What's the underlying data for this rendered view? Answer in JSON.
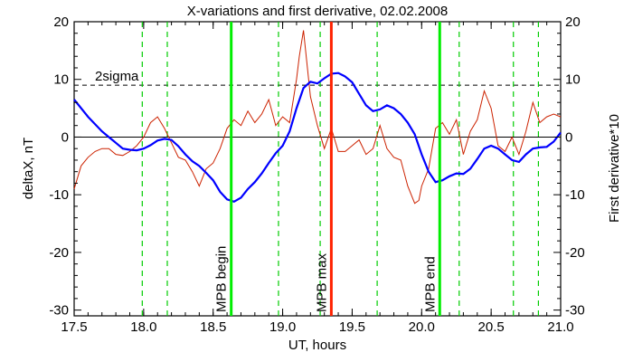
{
  "chart_data": {
    "type": "line",
    "title": "X-variations and first derivative, 02.02.2008",
    "xlabel": "UT, hours",
    "ylabel_left": "deltaX, nT",
    "ylabel_right": "First derivative*10",
    "xlim": [
      17.5,
      21.0
    ],
    "ylim": [
      -31,
      20
    ],
    "xticks": [
      "17.5",
      "18.0",
      "18.5",
      "19.0",
      "19.5",
      "20.0",
      "20.5",
      "21.0"
    ],
    "yticks_left": [
      "20",
      "10",
      "0",
      "-10",
      "-20",
      "-30"
    ],
    "yticks_right": [
      "20",
      "10",
      "0",
      "-10",
      "-20",
      "-30"
    ],
    "colors": {
      "deltaX": "#0000ff",
      "derivative": "#cc2200",
      "event_lines": "#00ee00",
      "max_line": "#ff2200",
      "sigma_line": "#000000",
      "zero_line": "#000000",
      "dashed_verticals": "#00cc00",
      "left_axis_label": "#0000cc",
      "right_axis_label": "#cc2200"
    },
    "sigma_level": {
      "label": "2sigma",
      "value": 9
    },
    "series": [
      {
        "name": "deltaX",
        "x": [
          17.5,
          17.6,
          17.7,
          17.75,
          17.8,
          17.85,
          17.9,
          17.95,
          18.0,
          18.05,
          18.1,
          18.15,
          18.2,
          18.25,
          18.3,
          18.35,
          18.4,
          18.45,
          18.5,
          18.55,
          18.6,
          18.65,
          18.7,
          18.75,
          18.8,
          18.85,
          18.9,
          18.95,
          19.0,
          19.05,
          19.1,
          19.15,
          19.2,
          19.25,
          19.3,
          19.35,
          19.4,
          19.45,
          19.5,
          19.55,
          19.6,
          19.65,
          19.7,
          19.75,
          19.8,
          19.85,
          19.9,
          19.95,
          20.0,
          20.05,
          20.1,
          20.15,
          20.2,
          20.25,
          20.3,
          20.35,
          20.4,
          20.45,
          20.5,
          20.55,
          20.6,
          20.65,
          20.7,
          20.75,
          20.8,
          20.85,
          20.9,
          20.95,
          21.0
        ],
        "y": [
          6.5,
          3.5,
          1.0,
          0.0,
          -1.0,
          -2.0,
          -2.2,
          -2.3,
          -2.0,
          -1.4,
          -0.6,
          -0.3,
          -0.5,
          -1.6,
          -3.0,
          -4.2,
          -5.0,
          -6.2,
          -7.5,
          -9.5,
          -10.8,
          -11.2,
          -10.5,
          -9.0,
          -7.8,
          -6.3,
          -4.5,
          -2.8,
          -1.5,
          1.0,
          5.0,
          8.5,
          9.6,
          9.3,
          10.2,
          11.0,
          11.1,
          10.5,
          9.5,
          7.5,
          5.5,
          4.5,
          4.8,
          5.5,
          5.0,
          4.0,
          2.5,
          0.5,
          -3.0,
          -6.0,
          -7.8,
          -7.5,
          -6.8,
          -6.3,
          -6.4,
          -5.5,
          -3.8,
          -2.0,
          -1.5,
          -2.0,
          -3.0,
          -4.0,
          -4.3,
          -3.0,
          -2.0,
          -1.8,
          -1.7,
          -0.8,
          0.8
        ]
      },
      {
        "name": "First derivative*10",
        "x": [
          17.5,
          17.55,
          17.6,
          17.65,
          17.7,
          17.75,
          17.8,
          17.85,
          17.9,
          17.95,
          18.0,
          18.05,
          18.1,
          18.15,
          18.2,
          18.25,
          18.3,
          18.35,
          18.4,
          18.45,
          18.5,
          18.55,
          18.6,
          18.65,
          18.7,
          18.75,
          18.8,
          18.85,
          18.9,
          18.95,
          19.0,
          19.05,
          19.1,
          19.12,
          19.15,
          19.2,
          19.25,
          19.3,
          19.35,
          19.4,
          19.45,
          19.5,
          19.55,
          19.6,
          19.65,
          19.7,
          19.75,
          19.8,
          19.85,
          19.9,
          19.95,
          19.98,
          20.0,
          20.05,
          20.1,
          20.15,
          20.2,
          20.25,
          20.3,
          20.35,
          20.4,
          20.45,
          20.5,
          20.55,
          20.6,
          20.65,
          20.7,
          20.75,
          20.8,
          20.85,
          20.9,
          20.95,
          21.0
        ],
        "y": [
          -9.0,
          -5.0,
          -3.5,
          -2.5,
          -2.0,
          -2.0,
          -3.0,
          -3.2,
          -2.5,
          -1.5,
          0.0,
          2.5,
          3.5,
          1.5,
          -1.0,
          -3.5,
          -4.0,
          -6.0,
          -8.5,
          -5.5,
          -4.5,
          -2.0,
          1.5,
          3.0,
          2.0,
          4.5,
          2.5,
          4.0,
          6.5,
          2.0,
          3.5,
          2.5,
          10.0,
          14.0,
          18.5,
          7.0,
          2.0,
          -2.0,
          1.5,
          -2.5,
          -2.5,
          -1.5,
          -0.5,
          -3.0,
          -2.0,
          2.0,
          -2.0,
          -3.5,
          -4.0,
          -8.5,
          -11.5,
          -11.0,
          -8.5,
          -5.5,
          1.5,
          2.5,
          0.5,
          3.0,
          -3.0,
          1.0,
          3.0,
          8.0,
          5.0,
          -1.5,
          -2.5,
          0.0,
          -3.0,
          1.0,
          6.0,
          2.5,
          3.5,
          4.0,
          3.5
        ]
      }
    ],
    "event_markers": [
      {
        "label": "MPB begin",
        "x": 18.63
      },
      {
        "label": "MPB max",
        "x": 19.35
      },
      {
        "label": "MPB end",
        "x": 20.13
      }
    ],
    "dashed_verticals_x": [
      17.99,
      18.17,
      18.97,
      19.27,
      19.68,
      20.27,
      20.66,
      20.84
    ]
  }
}
